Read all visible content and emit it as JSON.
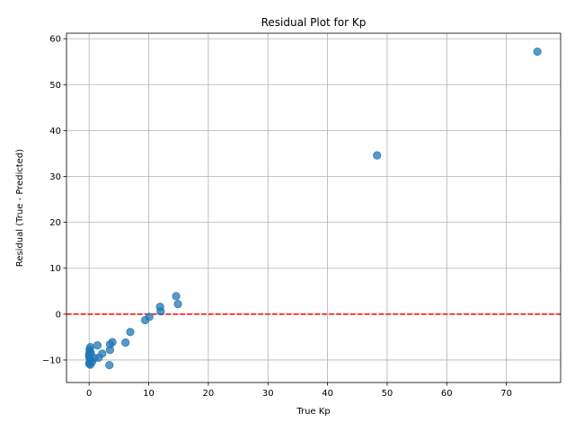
{
  "chart_data": {
    "type": "scatter",
    "title": "Residual Plot for Kp",
    "xlabel": "True Kp",
    "ylabel": "Residual (True - Predicted)",
    "xlim": [
      -3.8,
      79.1
    ],
    "ylim": [
      -14.9,
      61.2
    ],
    "xticks": [
      0,
      10,
      20,
      30,
      40,
      50,
      60,
      70
    ],
    "yticks": [
      -10,
      0,
      10,
      20,
      30,
      40,
      50,
      60
    ],
    "grid": true,
    "reference_line": {
      "y": 0,
      "color": "#ff0000",
      "style": "dashed"
    },
    "point_color": "#1f77b4",
    "points": [
      {
        "x": 75.2,
        "y": 57.2
      },
      {
        "x": 48.3,
        "y": 34.6
      },
      {
        "x": 14.6,
        "y": 3.9
      },
      {
        "x": 14.9,
        "y": 2.2
      },
      {
        "x": 11.9,
        "y": 1.6
      },
      {
        "x": 12.0,
        "y": 0.6
      },
      {
        "x": 10.1,
        "y": -0.6
      },
      {
        "x": 9.4,
        "y": -1.3
      },
      {
        "x": 6.9,
        "y": -3.9
      },
      {
        "x": 6.1,
        "y": -6.2
      },
      {
        "x": 3.9,
        "y": -6.1
      },
      {
        "x": 3.5,
        "y": -6.6
      },
      {
        "x": 3.5,
        "y": -7.8
      },
      {
        "x": 3.4,
        "y": -11.1
      },
      {
        "x": 1.4,
        "y": -6.8
      },
      {
        "x": 2.2,
        "y": -8.6
      },
      {
        "x": 1.6,
        "y": -9.5
      },
      {
        "x": 0.9,
        "y": -9.6
      },
      {
        "x": 0.2,
        "y": -7.2
      },
      {
        "x": 0.1,
        "y": -7.7
      },
      {
        "x": 0.1,
        "y": -8.2
      },
      {
        "x": 0.0,
        "y": -8.8
      },
      {
        "x": 0.0,
        "y": -9.2
      },
      {
        "x": 0.1,
        "y": -9.7
      },
      {
        "x": 0.2,
        "y": -10.1
      },
      {
        "x": 0.5,
        "y": -10.4
      },
      {
        "x": 0.0,
        "y": -10.8
      },
      {
        "x": 0.2,
        "y": -11.0
      },
      {
        "x": 0.1,
        "y": -10.5
      },
      {
        "x": 0.3,
        "y": -8.5
      }
    ]
  }
}
